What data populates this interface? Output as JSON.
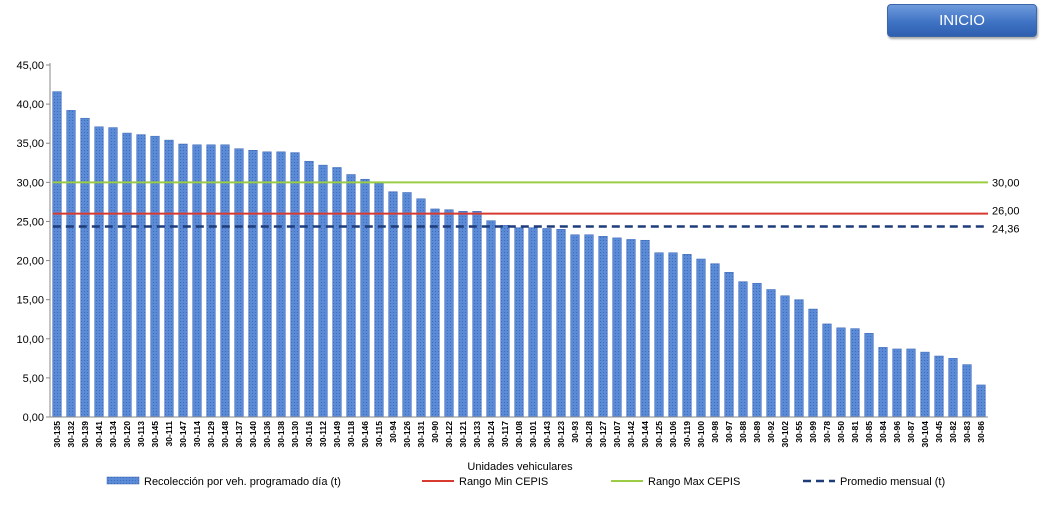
{
  "button": {
    "label": "INICIO"
  },
  "chart_data": {
    "type": "bar",
    "xlabel": "Unidades vehiculares",
    "ylabel": "",
    "ylim": [
      0,
      45
    ],
    "yticks": [
      "0,00",
      "5,00",
      "10,00",
      "15,00",
      "20,00",
      "25,00",
      "30,00",
      "35,00",
      "40,00",
      "45,00"
    ],
    "grid": false,
    "legend_position": "bottom",
    "categories": [
      "30-135",
      "30-132",
      "30-139",
      "30-141",
      "30-134",
      "30-120",
      "30-113",
      "30-145",
      "30-111",
      "30-147",
      "30-114",
      "30-129",
      "30-148",
      "30-137",
      "30-140",
      "30-136",
      "30-138",
      "30-130",
      "30-116",
      "30-112",
      "30-149",
      "30-118",
      "30-146",
      "30-115",
      "30-94",
      "30-126",
      "30-131",
      "30-90",
      "30-122",
      "30-121",
      "30-133",
      "30-124",
      "30-117",
      "30-108",
      "30-101",
      "30-143",
      "30-123",
      "30-93",
      "30-128",
      "30-127",
      "30-107",
      "30-142",
      "30-144",
      "30-125",
      "30-106",
      "30-119",
      "30-100",
      "30-98",
      "30-97",
      "30-88",
      "30-89",
      "30-92",
      "30-102",
      "30-55",
      "30-99",
      "30-78",
      "30-50",
      "30-81",
      "30-85",
      "30-84",
      "30-96",
      "30-87",
      "30-104",
      "30-45",
      "30-82",
      "30-83",
      "30-86"
    ],
    "series": [
      {
        "name": "Recolección por veh. programado día (t)",
        "kind": "bar",
        "color": "#4f81d1",
        "values": [
          41.6,
          39.2,
          38.2,
          37.1,
          37.0,
          36.3,
          36.1,
          35.9,
          35.4,
          34.9,
          34.8,
          34.8,
          34.8,
          34.3,
          34.1,
          33.9,
          33.9,
          33.8,
          32.7,
          32.2,
          31.9,
          31.0,
          30.4,
          29.9,
          28.8,
          28.7,
          27.9,
          26.6,
          26.5,
          26.3,
          26.3,
          25.1,
          24.5,
          24.2,
          24.2,
          24.1,
          24.0,
          23.3,
          23.3,
          23.1,
          22.9,
          22.7,
          22.6,
          21.0,
          21.0,
          20.8,
          20.2,
          19.6,
          18.5,
          17.3,
          17.1,
          16.3,
          15.5,
          15.0,
          13.8,
          11.9,
          11.4,
          11.3,
          10.7,
          8.9,
          8.7,
          8.7,
          8.3,
          7.8,
          7.5,
          6.7,
          4.1
        ]
      },
      {
        "name": "Rango Min CEPIS",
        "kind": "line",
        "color": "#d83a30",
        "value": 26.0,
        "label": "26,00"
      },
      {
        "name": "Rango Max CEPIS",
        "kind": "line",
        "color": "#9bcc43",
        "value": 30.0,
        "label": "30,00"
      },
      {
        "name": "Promedio mensual (t)",
        "kind": "dashed-line",
        "color": "#1f3c7a",
        "value": 24.36,
        "label": "24,36"
      }
    ]
  }
}
